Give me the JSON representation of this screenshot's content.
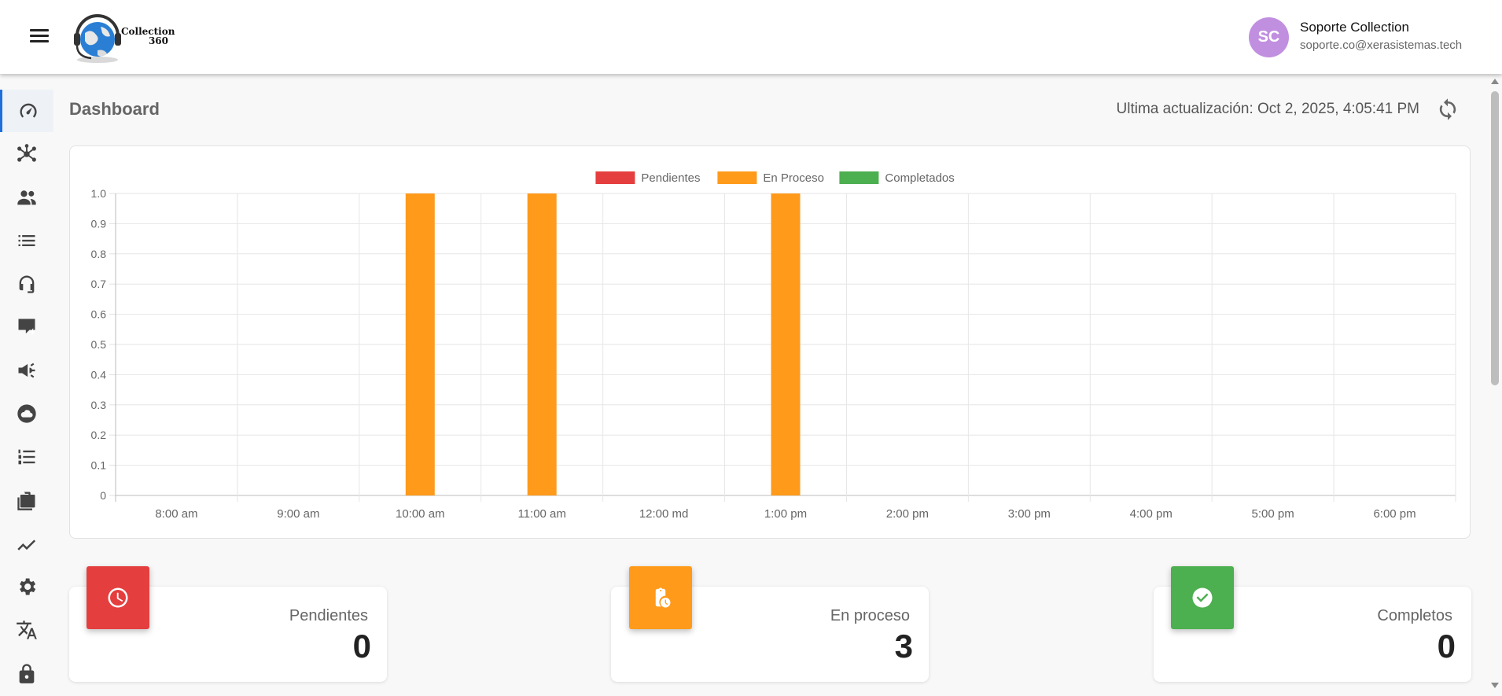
{
  "header": {
    "logo_text_line1": "Collection",
    "logo_text_line2": "360",
    "avatar_initials": "SC",
    "user_name": "Soporte Collection",
    "user_email": "soporte.co@xerasistemas.tech"
  },
  "sidebar": {
    "items": [
      {
        "icon": "speedometer-icon",
        "active": true
      },
      {
        "icon": "hub-icon"
      },
      {
        "icon": "people-icon"
      },
      {
        "icon": "list-icon"
      },
      {
        "icon": "headset-icon"
      },
      {
        "icon": "chat-bolt-icon"
      },
      {
        "icon": "campaign-icon"
      },
      {
        "icon": "cloud-icon"
      },
      {
        "icon": "numbered-list-icon"
      },
      {
        "icon": "briefcase-icon"
      },
      {
        "icon": "trending-icon"
      },
      {
        "icon": "gear-icon"
      },
      {
        "icon": "translate-icon"
      },
      {
        "icon": "lock-icon"
      }
    ]
  },
  "page": {
    "title": "Dashboard",
    "last_update": "Ultima actualización: Oct 2, 2025, 4:05:41 PM"
  },
  "chart_data": {
    "type": "bar",
    "categories": [
      "8:00 am",
      "9:00 am",
      "10:00 am",
      "11:00 am",
      "12:00 md",
      "1:00 pm",
      "2:00 pm",
      "3:00 pm",
      "4:00 pm",
      "5:00 pm",
      "6:00 pm"
    ],
    "series": [
      {
        "name": "Pendientes",
        "color": "#e53e3e",
        "values": [
          0,
          0,
          0,
          0,
          0,
          0,
          0,
          0,
          0,
          0,
          0
        ]
      },
      {
        "name": "En Proceso",
        "color": "#ff9a1a",
        "values": [
          0,
          0,
          1,
          1,
          0,
          1,
          0,
          0,
          0,
          0,
          0
        ]
      },
      {
        "name": "Completados",
        "color": "#4caf50",
        "values": [
          0,
          0,
          0,
          0,
          0,
          0,
          0,
          0,
          0,
          0,
          0
        ]
      }
    ],
    "yticks": [
      "0",
      "0.1",
      "0.2",
      "0.3",
      "0.4",
      "0.5",
      "0.6",
      "0.7",
      "0.8",
      "0.9",
      "1.0"
    ],
    "ylim": [
      0,
      1
    ],
    "legend": "top-center",
    "grid": true
  },
  "stats": [
    {
      "label": "Pendientes",
      "value": "0",
      "color": "#e53e3e",
      "icon": "clock-icon"
    },
    {
      "label": "En proceso",
      "value": "3",
      "color": "#ff9a1a",
      "icon": "clipboard-clock-icon"
    },
    {
      "label": "Completos",
      "value": "0",
      "color": "#4caf50",
      "icon": "check-circle-icon"
    }
  ]
}
